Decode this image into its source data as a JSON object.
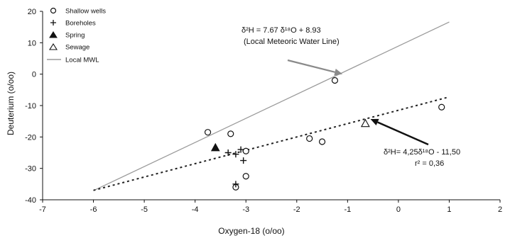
{
  "chart_data": {
    "type": "scatter",
    "xlabel": "Oxygen-18 (o/oo)",
    "ylabel": "Deuterium (o/oo)",
    "xlim": [
      -7,
      2
    ],
    "ylim": [
      -40,
      20
    ],
    "xticks": [
      "-7",
      "-6",
      "-5",
      "-4",
      "-3",
      "-2",
      "-1",
      "0",
      "1",
      "2"
    ],
    "yticks": [
      "20",
      "10",
      "0",
      "-10",
      "-20",
      "-30",
      "-40"
    ],
    "grid": false,
    "legend_position": "top-left",
    "series": [
      {
        "name": "Shallow wells",
        "marker": "open-circle",
        "points": [
          [
            -3.75,
            -18.5
          ],
          [
            -3.3,
            -19
          ],
          [
            -3.0,
            -24.5
          ],
          [
            -3.0,
            -32.5
          ],
          [
            -3.2,
            -36
          ],
          [
            -1.75,
            -20.5
          ],
          [
            -1.5,
            -21.5
          ],
          [
            -1.25,
            -2
          ],
          [
            0.85,
            -10.5
          ]
        ]
      },
      {
        "name": "Boreholes",
        "marker": "plus",
        "points": [
          [
            -3.2,
            -25.5
          ],
          [
            -3.35,
            -25
          ],
          [
            -3.1,
            -24
          ],
          [
            -3.05,
            -27.5
          ],
          [
            -3.2,
            -35
          ]
        ]
      },
      {
        "name": "Spring",
        "marker": "filled-triangle",
        "points": [
          [
            -3.6,
            -23.5
          ]
        ]
      },
      {
        "name": "Sewage",
        "marker": "open-triangle",
        "points": [
          [
            -0.65,
            -15.8
          ]
        ]
      }
    ],
    "lines": [
      {
        "name": "Local MWL",
        "style": "solid",
        "slope": 7.67,
        "intercept": 8.93,
        "x_range": [
          -6,
          1
        ]
      },
      {
        "name": "",
        "style": "dashed",
        "slope": 4.25,
        "intercept": -11.5,
        "x_range": [
          -6,
          1
        ]
      }
    ],
    "annotations": {
      "mwl_equation": "δ²H = 7.67 δ¹⁸O + 8.93",
      "mwl_label": "(Local Meteoric Water Line)",
      "fit_equation": "δ²H= 4,25δ¹⁸O - 11,50",
      "fit_r2": "r² = 0,36"
    },
    "colors": {
      "mwl_line": "#9a9a9a",
      "fit_line": "#222222",
      "marker": "#111111",
      "axis": "#111111"
    }
  }
}
